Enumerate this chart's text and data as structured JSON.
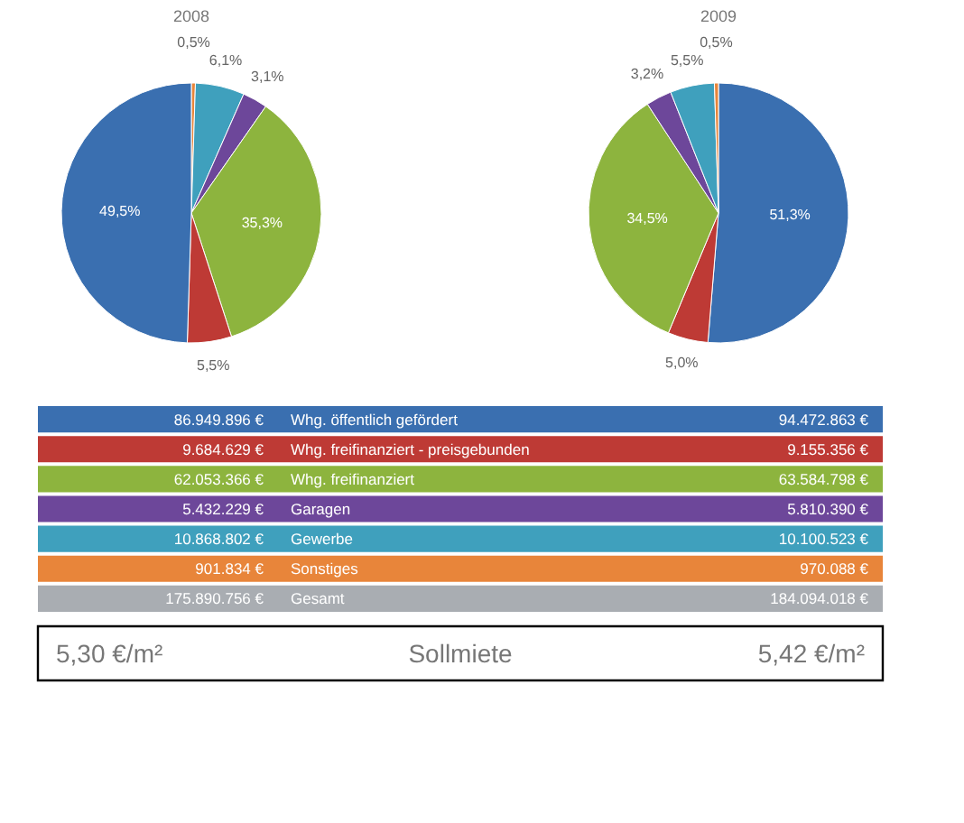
{
  "chart_data": [
    {
      "type": "pie",
      "title": "2008",
      "categories": [
        null,
        null,
        null,
        null,
        null,
        null
      ],
      "values": [
        0.5,
        6.1,
        3.1,
        35.3,
        5.5,
        49.5
      ],
      "value_labels": [
        "0,5%",
        "6,1%",
        "3,1%",
        "35,3%",
        "5,5%",
        "49,5%"
      ],
      "colors": [
        "#e8853a",
        "#3fa0bd",
        "#6d479a",
        "#8db43e",
        "#be3a35",
        "#3a6fb0"
      ]
    },
    {
      "type": "pie",
      "title": "2009",
      "categories": [
        null,
        null,
        null,
        null,
        null,
        null
      ],
      "values": [
        51.3,
        5.0,
        34.5,
        3.2,
        5.5,
        0.5
      ],
      "value_labels": [
        "51,3%",
        "5,0%",
        "34,5%",
        "3,2%",
        "5,5%",
        "0,5%"
      ],
      "colors": [
        "#3a6fb0",
        "#be3a35",
        "#8db43e",
        "#6d479a",
        "#3fa0bd",
        "#e8853a"
      ]
    },
    {
      "type": "other",
      "categories": [
        "Whg. öffentlich gefördert",
        "Whg. freifinanziert - preisgebunden",
        "Whg. freifinanziert",
        "Garagen",
        "Gewerbe",
        "Sonstiges",
        "Gesamt"
      ],
      "series": [
        {
          "colors": [
            "#3a6fb0",
            "#be3a35",
            "#8db43e",
            "#6d479a",
            "#3fa0bd",
            "#e8853a",
            "#a9adb2"
          ],
          "values": [
            86949896,
            9684629,
            62053366,
            5432229,
            10868802,
            901834,
            175890756
          ],
          "value_labels": [
            "86.949.896 €",
            "9.684.629 €",
            "62.053.366 €",
            "5.432.229 €",
            "10.868.802 €",
            "901.834 €",
            "175.890.756 €"
          ]
        },
        {
          "colors": [
            "#3a6fb0",
            "#be3a35",
            "#8db43e",
            "#6d479a",
            "#3fa0bd",
            "#e8853a",
            "#a9adb2"
          ],
          "values": [
            94472863,
            9155356,
            63584798,
            5810390,
            10100523,
            970088,
            184094018
          ],
          "value_labels": [
            "94.472.863 €",
            "9.155.356 €",
            "63.584.798 €",
            "5.810.390 €",
            "10.100.523 €",
            "970.088 €",
            "184.094.018 €"
          ]
        }
      ]
    },
    {
      "type": "other",
      "annotations": [
        "5,30 €/m²",
        "Sollmiete",
        "5,42 €/m²"
      ]
    }
  ]
}
